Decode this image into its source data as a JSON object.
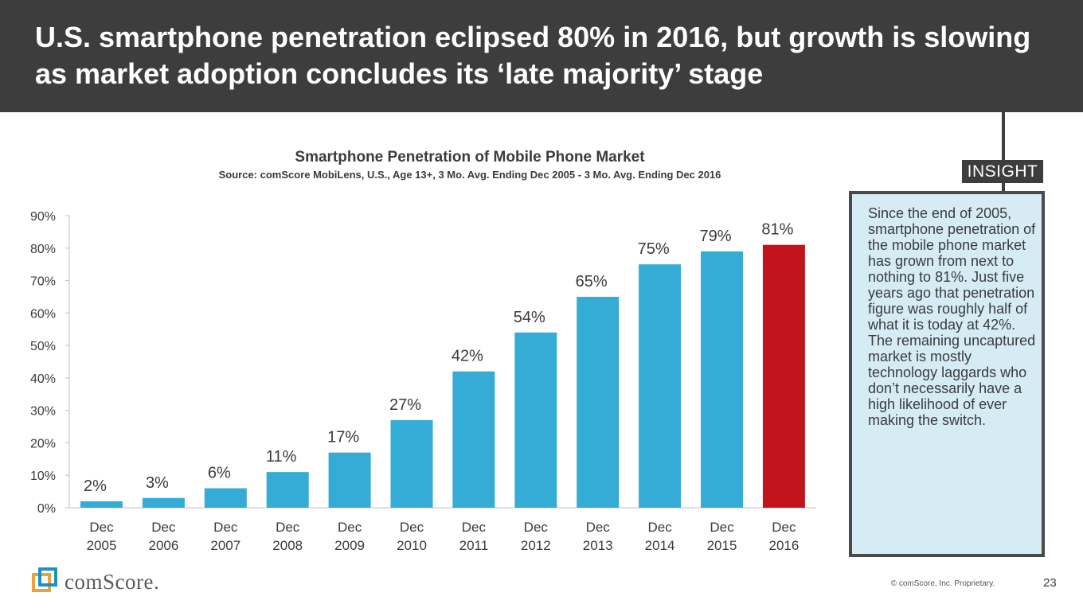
{
  "slide": {
    "title": "U.S. smartphone penetration eclipsed 80% in 2016, but growth is slowing as market adoption concludes its ‘late majority’ stage",
    "insight_label": "INSIGHT",
    "insight_text": "Since the end of 2005, smartphone penetration of the mobile phone market has grown from next to nothing to 81%. Just five years ago that penetration figure was roughly half of what it is today at 42%. The remaining uncaptured market is mostly technology laggards who don’t necessarily have a high likelihood of ever making the switch.",
    "logo_text": "comScore.",
    "copyright": "© comScore, Inc. Proprietary.",
    "page_number": "23"
  },
  "chart_data": {
    "type": "bar",
    "title": "Smartphone Penetration of Mobile Phone Market",
    "subtitle": "Source: comScore MobiLens, U.S., Age 13+, 3 Mo. Avg. Ending Dec 2005 - 3 Mo. Avg. Ending Dec 2016",
    "categories": [
      [
        "Dec",
        "2005"
      ],
      [
        "Dec",
        "2006"
      ],
      [
        "Dec",
        "2007"
      ],
      [
        "Dec",
        "2008"
      ],
      [
        "Dec",
        "2009"
      ],
      [
        "Dec",
        "2010"
      ],
      [
        "Dec",
        "2011"
      ],
      [
        "Dec",
        "2012"
      ],
      [
        "Dec",
        "2013"
      ],
      [
        "Dec",
        "2014"
      ],
      [
        "Dec",
        "2015"
      ],
      [
        "Dec",
        "2016"
      ]
    ],
    "values": [
      2,
      3,
      6,
      11,
      17,
      27,
      42,
      54,
      65,
      75,
      79,
      81
    ],
    "data_labels": [
      "2%",
      "3%",
      "6%",
      "11%",
      "17%",
      "27%",
      "42%",
      "54%",
      "65%",
      "75%",
      "79%",
      "81%"
    ],
    "y_ticks": [
      "0%",
      "10%",
      "20%",
      "30%",
      "40%",
      "50%",
      "60%",
      "70%",
      "80%",
      "90%"
    ],
    "ylim": [
      0,
      90
    ],
    "bar_color": "#34acd6",
    "highlight_color": "#c0131c",
    "highlight_index": 11,
    "grid": false
  }
}
